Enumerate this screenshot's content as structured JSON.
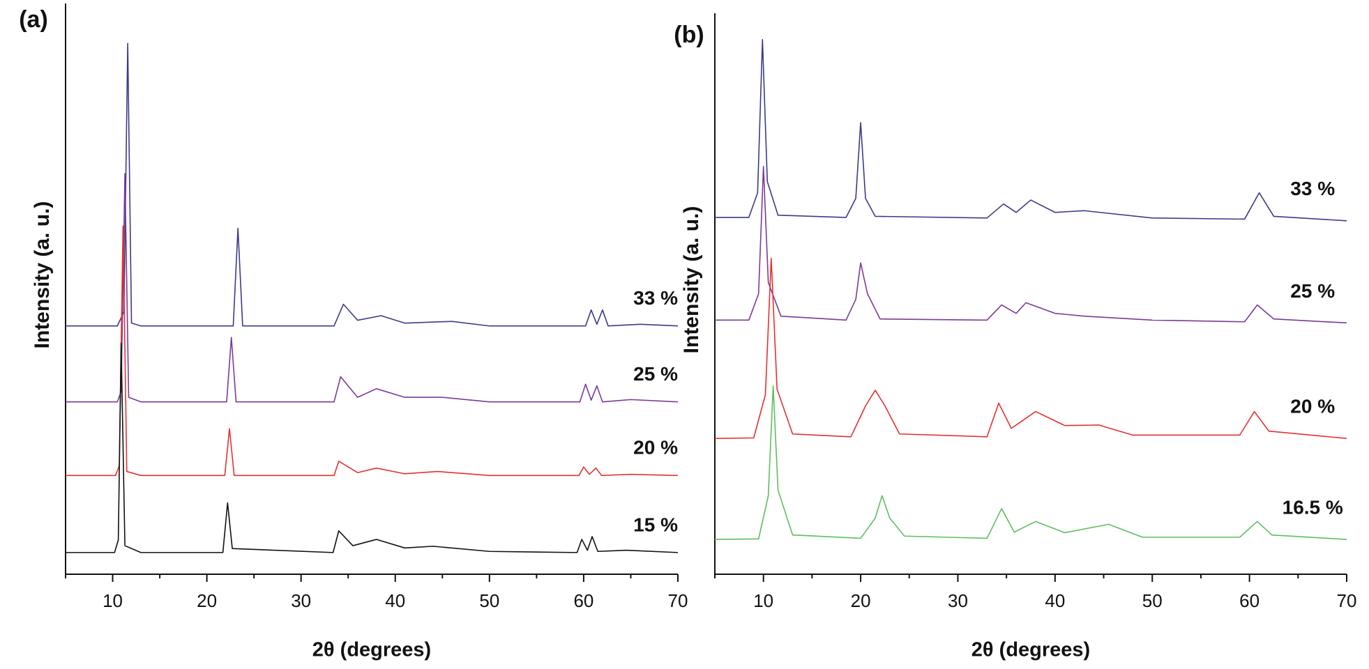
{
  "chart_data": [
    {
      "type": "line",
      "title": "(a)",
      "xlabel": "2θ (degrees)",
      "ylabel": "Intensity (a. u.)",
      "xlim": [
        5,
        70
      ],
      "ylim": [
        0,
        100
      ],
      "xticks": [
        10,
        20,
        30,
        40,
        50,
        60,
        70
      ],
      "xminor": [
        5,
        15,
        25,
        35,
        45,
        55,
        65
      ],
      "series": [
        {
          "name": "33 %",
          "color": "#3a3a8c",
          "x": [
            5,
            10.5,
            11.2,
            11.6,
            12,
            13,
            22.8,
            23.3,
            23.8,
            33.5,
            34.5,
            36,
            38.5,
            41,
            46,
            50,
            60.2,
            60.8,
            61.4,
            62,
            62.6,
            66,
            70
          ],
          "values": [
            43.5,
            43.5,
            46,
            93,
            44,
            43.5,
            43.5,
            60.6,
            43.5,
            43.5,
            47.3,
            44.5,
            45.3,
            44,
            44.3,
            43.5,
            43.5,
            46.3,
            43.8,
            46.3,
            43.5,
            43.8,
            43.5
          ]
        },
        {
          "name": "25 %",
          "color": "#7a3a9a",
          "x": [
            5,
            10.5,
            10.9,
            11.3,
            11.7,
            13,
            22.1,
            22.6,
            23.1,
            33.5,
            34.2,
            36,
            38,
            41,
            45,
            50,
            59.6,
            60.2,
            60.8,
            61.4,
            62,
            65,
            70
          ],
          "values": [
            30.2,
            30.2,
            32,
            70.2,
            31,
            30.2,
            30.2,
            41.5,
            30.2,
            30.2,
            34.6,
            31,
            32.5,
            31,
            31,
            30.2,
            30.2,
            33.3,
            30.5,
            33,
            30.2,
            30.6,
            30.2
          ]
        },
        {
          "name": "20 %",
          "color": "#e53030",
          "x": [
            5,
            10.3,
            10.7,
            11.1,
            11.5,
            13,
            21.9,
            22.4,
            22.9,
            33.5,
            34,
            36,
            38,
            41,
            44.5,
            50,
            59.5,
            60,
            60.6,
            61.3,
            61.9,
            65,
            70
          ],
          "values": [
            17.3,
            17.3,
            19,
            61,
            18,
            17.3,
            17.3,
            25.5,
            17.3,
            17.3,
            19.8,
            17.8,
            18.6,
            17.6,
            18,
            17.3,
            17.3,
            18.8,
            17.5,
            18.6,
            17.3,
            17.5,
            17.3
          ]
        },
        {
          "name": "15 %",
          "color": "#111111",
          "x": [
            5,
            10.2,
            10.6,
            10.9,
            11.3,
            13,
            21.7,
            22.2,
            22.7,
            33.4,
            34,
            35.5,
            38,
            41,
            44,
            50,
            59.3,
            59.8,
            60.4,
            60.9,
            61.5,
            64.5,
            70
          ],
          "values": [
            3.8,
            3.8,
            6,
            40.5,
            5,
            3.8,
            3.8,
            12.5,
            4.5,
            3.8,
            7.6,
            5,
            6.1,
            4.6,
            4.9,
            4,
            3.8,
            6.1,
            4.2,
            6.6,
            4,
            4.2,
            3.8
          ]
        }
      ]
    },
    {
      "type": "line",
      "title": "(b)",
      "xlabel": "2θ (degrees)",
      "ylabel": "Intensity (a. u.)",
      "xlim": [
        5,
        70
      ],
      "ylim": [
        0,
        100
      ],
      "xticks": [
        10,
        20,
        30,
        40,
        50,
        60,
        70
      ],
      "xminor": [
        5,
        15,
        25,
        35,
        45,
        55,
        65
      ],
      "series": [
        {
          "name": "33 %",
          "color": "#3a3a8c",
          "x": [
            5,
            8.5,
            9.4,
            9.9,
            10.4,
            11.5,
            18.5,
            19.5,
            20,
            20.5,
            21.5,
            33,
            34.7,
            36,
            37.5,
            40,
            43,
            50,
            59.5,
            61,
            62.5,
            70
          ],
          "values": [
            63.6,
            63.6,
            68,
            95.3,
            70,
            64,
            63.6,
            67,
            80.5,
            67,
            63.8,
            63.5,
            66,
            64.5,
            66.7,
            64.5,
            64.8,
            63.5,
            63.3,
            68,
            63.8,
            63
          ]
        },
        {
          "name": "25 %",
          "color": "#7a3a9a",
          "x": [
            5,
            8.5,
            9.5,
            10,
            10.5,
            11.8,
            18.5,
            19.5,
            20,
            20.7,
            22,
            33,
            34.5,
            36,
            37,
            40,
            43,
            50,
            59.5,
            60.8,
            62.5,
            70
          ],
          "values": [
            45.3,
            45.3,
            50,
            72.7,
            52,
            46,
            45.3,
            49,
            55.5,
            50,
            45.5,
            45.3,
            48,
            46.5,
            48.4,
            46.5,
            46,
            45.3,
            45,
            48,
            45.5,
            44.8
          ]
        },
        {
          "name": "20 %",
          "color": "#e53030",
          "x": [
            5,
            9,
            10.2,
            10.8,
            11.4,
            13,
            19,
            20.5,
            21.5,
            22.5,
            24,
            33,
            34.2,
            35.5,
            38,
            41,
            44.5,
            48,
            59,
            60.5,
            62,
            70
          ],
          "values": [
            24.2,
            24.3,
            32,
            56.3,
            33,
            25,
            24.5,
            30,
            32.8,
            30,
            25,
            24.5,
            30.5,
            26,
            29,
            26.5,
            26.6,
            24.8,
            24.8,
            29,
            25.5,
            24.2
          ]
        },
        {
          "name": "16.5 %",
          "color": "#5cbf5c",
          "x": [
            5,
            9.5,
            10.5,
            11,
            11.5,
            13,
            20,
            21.5,
            22.2,
            23,
            24.5,
            33,
            34.5,
            35.8,
            38,
            41,
            45.5,
            49,
            59,
            60.8,
            62.3,
            70
          ],
          "values": [
            6.2,
            6.3,
            14,
            33.6,
            15,
            7,
            6.4,
            10,
            14,
            10,
            6.8,
            6.4,
            11.7,
            7.5,
            9.4,
            7.4,
            8.9,
            6.6,
            6.6,
            9.4,
            7,
            6.2
          ]
        }
      ]
    }
  ]
}
